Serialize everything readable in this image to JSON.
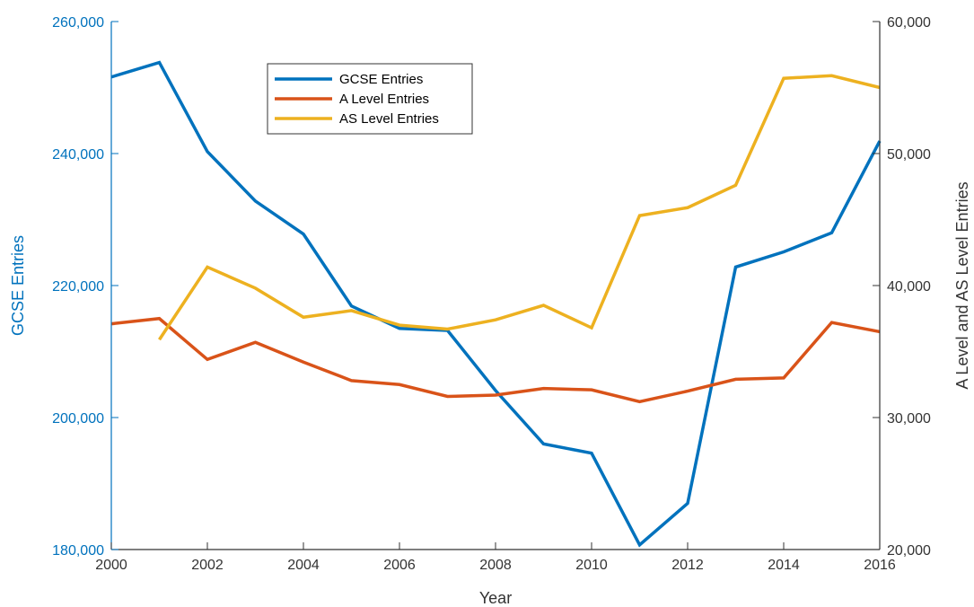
{
  "chart_data": {
    "type": "line",
    "xlabel": "Year",
    "ylabel_left": "GCSE Entries",
    "ylabel_right": "A Level and AS Level Entries",
    "xlim": [
      2000,
      2016
    ],
    "ylim_left": [
      180000,
      260000
    ],
    "ylim_right": [
      20000,
      60000
    ],
    "x_ticks": [
      2000,
      2002,
      2004,
      2006,
      2008,
      2010,
      2012,
      2014,
      2016
    ],
    "y_ticks_left": [
      180000,
      200000,
      220000,
      240000,
      260000
    ],
    "y_ticks_right": [
      20000,
      30000,
      40000,
      50000,
      60000
    ],
    "x_tick_labels": [
      "2000",
      "2002",
      "2004",
      "2006",
      "2008",
      "2010",
      "2012",
      "2014",
      "2016"
    ],
    "y_tick_labels_left": [
      "180,000",
      "200,000",
      "220,000",
      "240,000",
      "260,000"
    ],
    "y_tick_labels_right": [
      "20,000",
      "30,000",
      "40,000",
      "50,000",
      "60,000"
    ],
    "grid": false,
    "legend_position": "top-left",
    "colors": {
      "left_axis": "#0072BD",
      "right_axis": "#333333"
    },
    "series": [
      {
        "name": "GCSE Entries",
        "axis": "left",
        "color": "#0072BD",
        "x": [
          2000,
          2001,
          2002,
          2003,
          2004,
          2005,
          2006,
          2007,
          2008,
          2009,
          2010,
          2011,
          2012,
          2013,
          2014,
          2015,
          2016
        ],
        "y": [
          251600,
          253800,
          240300,
          232800,
          227800,
          216900,
          213500,
          213200,
          204100,
          196000,
          194600,
          180700,
          187000,
          222800,
          225100,
          228000,
          241900
        ]
      },
      {
        "name": "A Level Entries",
        "axis": "right",
        "color": "#D95319",
        "x": [
          2000,
          2001,
          2002,
          2003,
          2004,
          2005,
          2006,
          2007,
          2008,
          2009,
          2010,
          2011,
          2012,
          2013,
          2014,
          2015,
          2016
        ],
        "y": [
          37100,
          37500,
          34400,
          35700,
          34200,
          32800,
          32500,
          31600,
          31700,
          32200,
          32100,
          31200,
          32000,
          32900,
          33000,
          37200,
          36500
        ]
      },
      {
        "name": "AS Level Entries",
        "axis": "right",
        "color": "#EDB120",
        "x": [
          2001,
          2002,
          2003,
          2004,
          2005,
          2006,
          2007,
          2008,
          2009,
          2010,
          2011,
          2012,
          2013,
          2014,
          2015,
          2016
        ],
        "y": [
          35900,
          41400,
          39800,
          37600,
          38100,
          37000,
          36700,
          37400,
          38500,
          36800,
          45300,
          45900,
          47600,
          55700,
          55900,
          55000
        ]
      }
    ]
  }
}
